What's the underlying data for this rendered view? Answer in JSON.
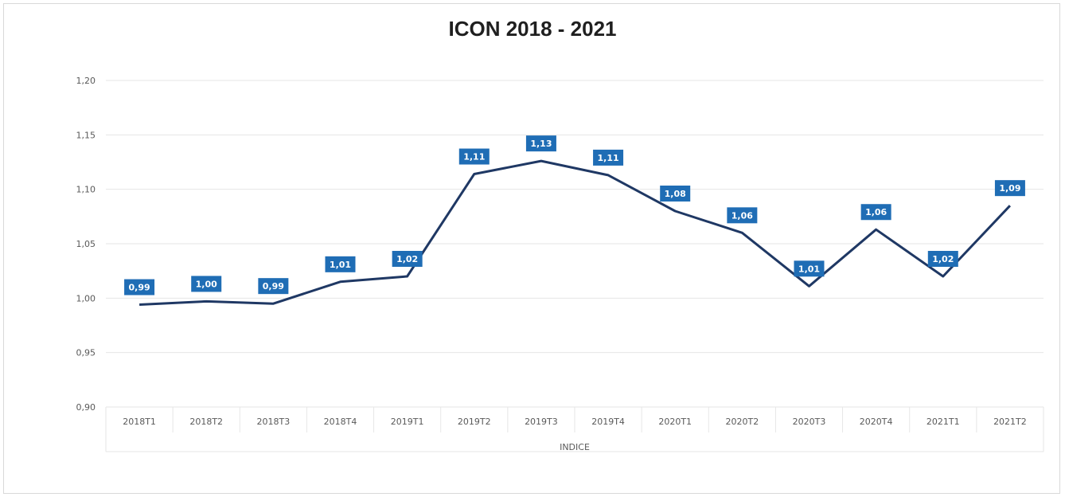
{
  "chart_data": {
    "type": "line",
    "title": "ICON 2018 - 2021",
    "xlabel": "INDICE",
    "ylabel": "",
    "ylim": [
      0.9,
      1.2
    ],
    "yticks": [
      "0,90",
      "0,95",
      "1,00",
      "1,05",
      "1,10",
      "1,15",
      "1,20"
    ],
    "ytick_values": [
      0.9,
      0.95,
      1.0,
      1.05,
      1.1,
      1.15,
      1.2
    ],
    "grid": true,
    "legend": "none",
    "line_color": "#1f3864",
    "label_color": "#1f6db5",
    "categories": [
      "2018T1",
      "2018T2",
      "2018T3",
      "2018T4",
      "2019T1",
      "2019T2",
      "2019T3",
      "2019T4",
      "2020T1",
      "2020T2",
      "2020T3",
      "2020T4",
      "2021T1",
      "2021T2"
    ],
    "series": [
      {
        "values": [
          0.994,
          0.997,
          0.995,
          1.015,
          1.02,
          1.114,
          1.126,
          1.113,
          1.08,
          1.06,
          1.011,
          1.063,
          1.02,
          1.085
        ],
        "data_labels": [
          "0,99",
          "1,00",
          "0,99",
          "1,01",
          "1,02",
          "1,11",
          "1,13",
          "1,11",
          "1,08",
          "1,06",
          "1,01",
          "1,06",
          "1,02",
          "1,09"
        ]
      }
    ]
  }
}
